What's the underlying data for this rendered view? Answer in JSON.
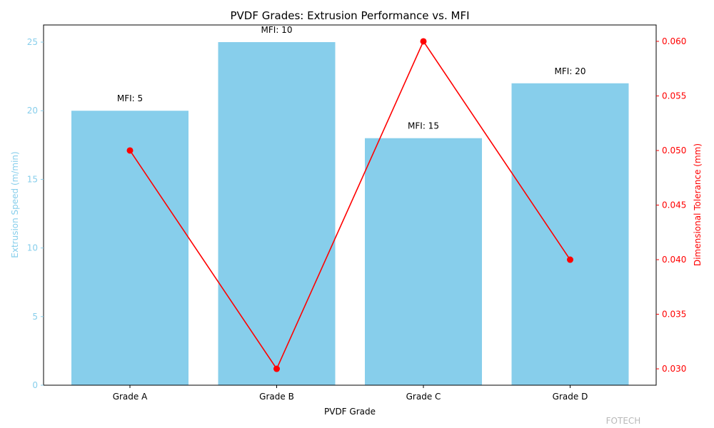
{
  "chart_data": {
    "type": "bar+line",
    "title": "PVDF Grades: Extrusion Performance vs. MFI",
    "xlabel": "PVDF Grade",
    "categories": [
      "Grade A",
      "Grade B",
      "Grade C",
      "Grade D"
    ],
    "bar_series": {
      "axis_label": "Extrusion Speed (m/min)",
      "values": [
        20,
        25,
        18,
        22
      ],
      "color": "#87CEEB",
      "ylim": [
        0,
        26.25
      ],
      "ticks": [
        "0",
        "5",
        "10",
        "15",
        "20",
        "25"
      ]
    },
    "line_series": {
      "axis_label": "Dimensional Tolerance (mm)",
      "values": [
        0.05,
        0.03,
        0.06,
        0.04
      ],
      "color": "#FF0000",
      "ylim": [
        0.0285,
        0.0615
      ],
      "ticks": [
        "0.030",
        "0.035",
        "0.040",
        "0.045",
        "0.050",
        "0.055",
        "0.060"
      ]
    },
    "annotations": [
      "MFI: 5",
      "MFI: 10",
      "MFI: 15",
      "MFI: 20"
    ],
    "grid": false
  },
  "watermark": "FOTECH"
}
